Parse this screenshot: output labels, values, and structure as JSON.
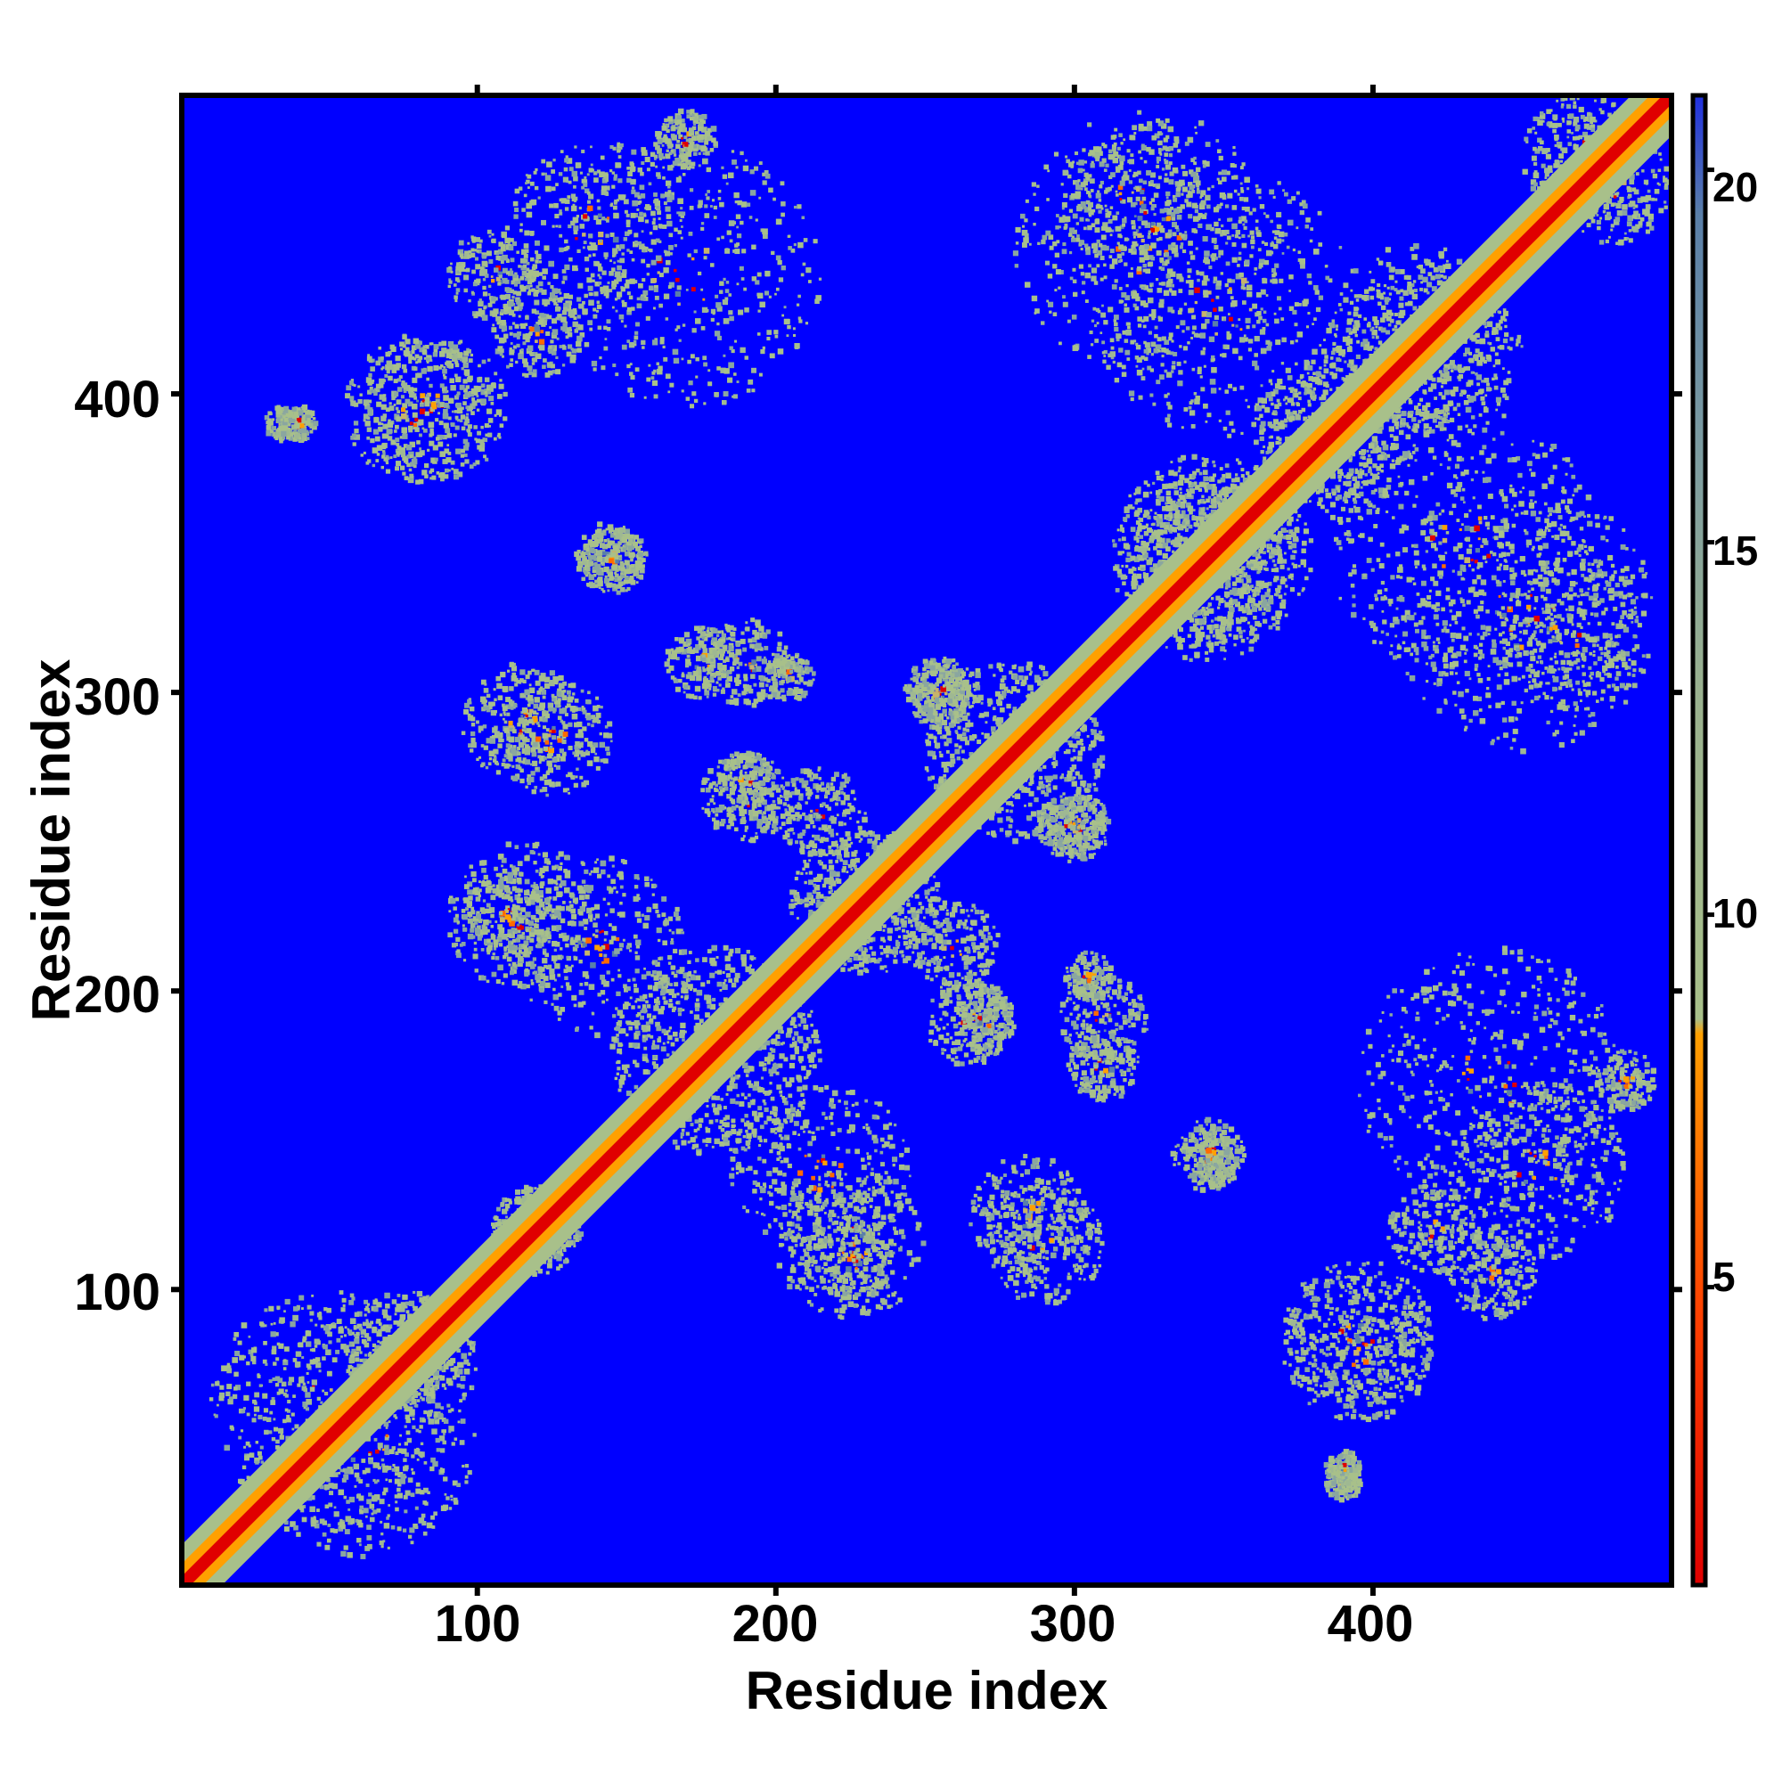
{
  "chart_data": {
    "type": "heatmap",
    "title": "",
    "xlabel": "Residue index",
    "ylabel": "Residue index",
    "n_residues": 500,
    "xlim": [
      1,
      500
    ],
    "ylim": [
      1,
      500
    ],
    "xticks": [
      100,
      200,
      300,
      400
    ],
    "yticks": [
      100,
      200,
      300,
      400
    ],
    "colorbar": {
      "ticks": [
        5,
        10,
        15,
        20
      ],
      "range": [
        1,
        21
      ],
      "colors": {
        "near": "#e00000",
        "mid": "#ff8c00",
        "far_low": "#a8c08a",
        "far_high": "#5a7fa8",
        "max": "#0000ff"
      }
    },
    "background_value": 21,
    "diagonal": {
      "description_value": 1
    },
    "contact_clusters": [
      {
        "x": 50,
        "y": 60,
        "spread": 40
      },
      {
        "x": 80,
        "y": 75,
        "spread": 20
      },
      {
        "x": 120,
        "y": 120,
        "spread": 15
      },
      {
        "x": 180,
        "y": 180,
        "spread": 35
      },
      {
        "x": 230,
        "y": 230,
        "spread": 25
      },
      {
        "x": 280,
        "y": 280,
        "spread": 30
      },
      {
        "x": 340,
        "y": 345,
        "spread": 30
      },
      {
        "x": 390,
        "y": 385,
        "spread": 25
      },
      {
        "x": 470,
        "y": 480,
        "spread": 20
      },
      {
        "x": 85,
        "y": 395,
        "spread": 25
      },
      {
        "x": 35,
        "y": 390,
        "spread": 6
      },
      {
        "x": 170,
        "y": 440,
        "spread": 45
      },
      {
        "x": 105,
        "y": 440,
        "spread": 15
      },
      {
        "x": 325,
        "y": 450,
        "spread": 45
      },
      {
        "x": 145,
        "y": 345,
        "spread": 10
      },
      {
        "x": 115,
        "y": 290,
        "spread": 20
      },
      {
        "x": 175,
        "y": 310,
        "spread": 12
      },
      {
        "x": 205,
        "y": 305,
        "spread": 8
      },
      {
        "x": 115,
        "y": 225,
        "spread": 25
      },
      {
        "x": 190,
        "y": 265,
        "spread": 15
      },
      {
        "x": 255,
        "y": 300,
        "spread": 12
      },
      {
        "x": 300,
        "y": 255,
        "spread": 10
      },
      {
        "x": 260,
        "y": 215,
        "spread": 15
      },
      {
        "x": 270,
        "y": 190,
        "spread": 10
      },
      {
        "x": 310,
        "y": 190,
        "spread": 15
      },
      {
        "x": 345,
        "y": 145,
        "spread": 12
      },
      {
        "x": 285,
        "y": 125,
        "spread": 20
      },
      {
        "x": 225,
        "y": 110,
        "spread": 15
      },
      {
        "x": 395,
        "y": 80,
        "spread": 25
      },
      {
        "x": 455,
        "y": 140,
        "spread": 30
      },
      {
        "x": 485,
        "y": 170,
        "spread": 10
      },
      {
        "x": 390,
        "y": 40,
        "spread": 6
      },
      {
        "x": 345,
        "y": 350,
        "spread": 30
      },
      {
        "x": 430,
        "y": 350,
        "spread": 45
      },
      {
        "x": 465,
        "y": 320,
        "spread": 25
      },
      {
        "x": 415,
        "y": 420,
        "spread": 30
      },
      {
        "x": 215,
        "y": 140,
        "spread": 30
      },
      {
        "x": 120,
        "y": 420,
        "spread": 15
      }
    ]
  }
}
